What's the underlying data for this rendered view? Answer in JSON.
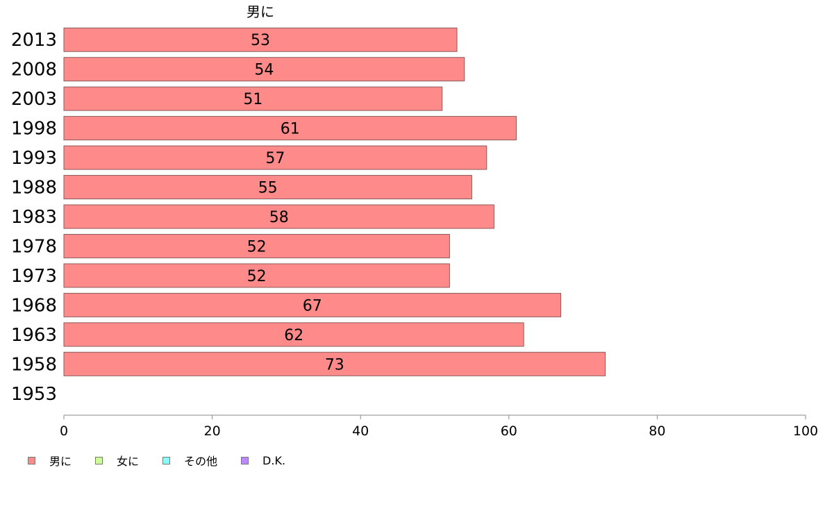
{
  "chart_data": {
    "type": "bar",
    "orientation": "horizontal",
    "title": "",
    "xlabel": "",
    "ylabel": "",
    "xlim": [
      0,
      100
    ],
    "x_ticks": [
      0,
      20,
      40,
      60,
      80,
      100
    ],
    "categories": [
      "2013",
      "2008",
      "2003",
      "1998",
      "1993",
      "1988",
      "1983",
      "1978",
      "1973",
      "1968",
      "1963",
      "1958",
      "1953"
    ],
    "series": [
      {
        "name": "男に",
        "color": "#ff8a8a",
        "values": [
          53,
          54,
          51,
          61,
          57,
          55,
          58,
          52,
          52,
          67,
          62,
          73,
          null
        ],
        "labels": [
          "53",
          "54",
          "51",
          "61",
          "57",
          "55",
          "58",
          "52",
          "52",
          "67",
          "62",
          "73",
          ""
        ]
      }
    ],
    "series_label": "男に",
    "legend_position": "bottom-left",
    "grid": false
  },
  "legend": [
    {
      "label": "男に",
      "color": "#ff8a8a"
    },
    {
      "label": "女に",
      "color": "#ccff99"
    },
    {
      "label": "その他",
      "color": "#88ffff"
    },
    {
      "label": "D.K.",
      "color": "#bb88ff"
    }
  ]
}
